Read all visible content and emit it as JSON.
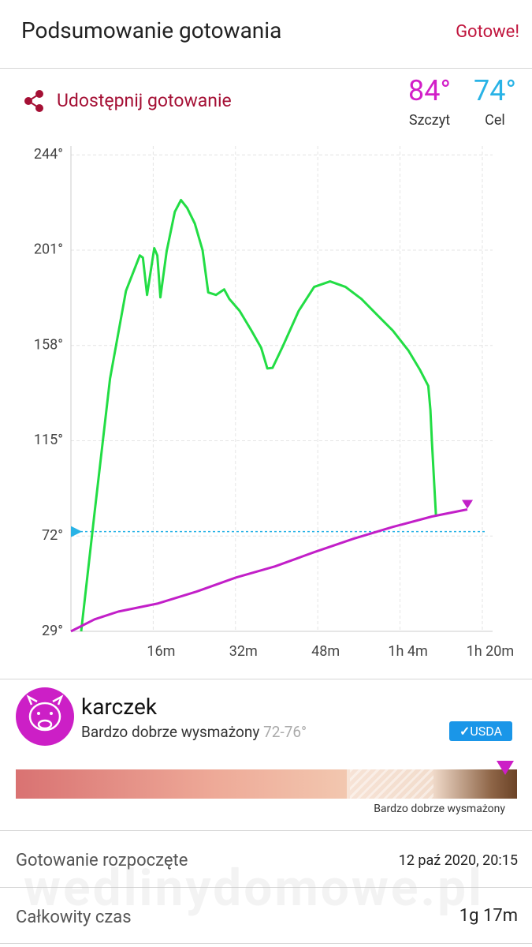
{
  "header": {
    "title": "Podsumowanie gotowania",
    "action": "Gotowe!"
  },
  "share": "Udostępnij gotowanie",
  "stats": [
    {
      "value": "84°",
      "label": "Szczyt",
      "color": "#d21fc8"
    },
    {
      "value": "74°",
      "label": "Cel",
      "color": "#29b3e6"
    }
  ],
  "chart_data": {
    "type": "line",
    "xlim": [
      0,
      82
    ],
    "ylim": [
      29,
      248
    ],
    "xticks": [
      {
        "value": 16,
        "label": "16m"
      },
      {
        "value": 32,
        "label": "32m"
      },
      {
        "value": 48,
        "label": "48m"
      },
      {
        "value": 64,
        "label": "1h 4m"
      },
      {
        "value": 80,
        "label": "1h 20m"
      }
    ],
    "yticks": [
      {
        "value": 29,
        "label": "29°"
      },
      {
        "value": 72,
        "label": "72°"
      },
      {
        "value": 115,
        "label": "115°"
      },
      {
        "value": 158,
        "label": "158°"
      },
      {
        "value": 201,
        "label": "201°"
      },
      {
        "value": 244,
        "label": "244°"
      }
    ],
    "grid": true,
    "target": {
      "value": 74,
      "color": "#29b3e6"
    },
    "series": [
      {
        "color": "#22dd44",
        "x": [
          2,
          4.6,
          7.6,
          10.7,
          13.4,
          14.0,
          14.8,
          16.2,
          16.8,
          17.4,
          18.6,
          20.2,
          21.4,
          22.6,
          24.1,
          25.6,
          26.7,
          28.2,
          29.8,
          30.8,
          32.8,
          35.1,
          37.0,
          38.2,
          39.2,
          41.2,
          44.3,
          47.3,
          50.4,
          53.4,
          56.5,
          59.5,
          62.6,
          65.6,
          67.9,
          69.5,
          69.9,
          70.2,
          71.0
        ],
        "values": [
          29,
          82.6,
          143,
          182.6,
          198.6,
          197.6,
          180.8,
          201.9,
          198.6,
          179.7,
          200.4,
          218.3,
          223.6,
          220,
          213,
          201,
          181.9,
          180.8,
          183.3,
          179,
          173.6,
          164.7,
          156.9,
          147.6,
          147.9,
          157.6,
          173.6,
          184.4,
          186.9,
          184.4,
          179,
          171.9,
          164.7,
          155.8,
          146.9,
          139.7,
          129,
          114.7,
          80.8
        ]
      },
      {
        "color": "#c21fc8",
        "x": [
          0,
          4.6,
          9.2,
          16.8,
          24.4,
          32.1,
          39.7,
          47.3,
          55.0,
          62.6,
          70.2,
          77.1
        ],
        "values": [
          29,
          34.4,
          37.9,
          41.5,
          46.9,
          53.3,
          58.3,
          64.7,
          70.8,
          76.1,
          80.8,
          84
        ]
      }
    ]
  },
  "product": {
    "name": "karczek",
    "doneness": "Bardzo dobrze wysmażony",
    "range": "72-76°",
    "badge": "USDA",
    "scale_label": "Bardzo dobrze wysmażony"
  },
  "details": [
    [
      "Gotowanie rozpoczęte",
      "12 paź 2020, 20:15"
    ],
    [
      "Całkowity czas",
      "1g 17m"
    ]
  ],
  "watermark": "wedlinydomowe.pl"
}
